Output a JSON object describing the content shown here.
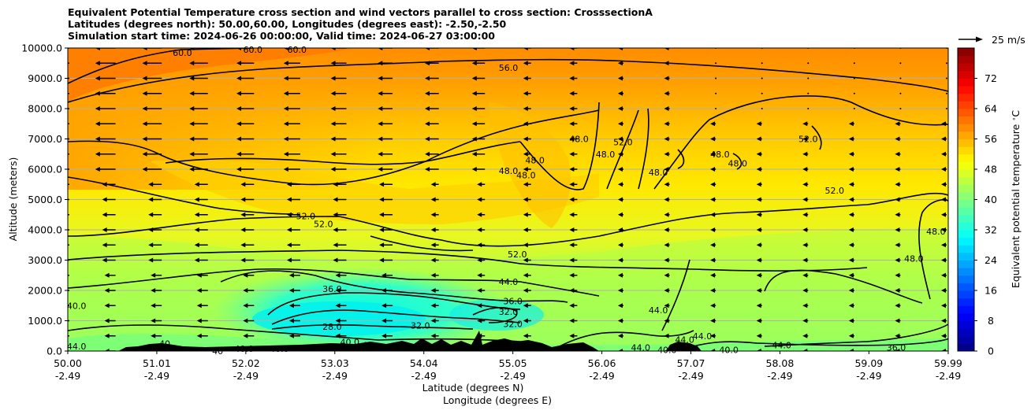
{
  "chart_data": {
    "type": "heatmap",
    "title_lines": [
      "Equivalent Potential Temperature cross section and wind vectors parallel to cross section: CrosssectionA",
      "Latitudes (degrees north): 50.00,60.00, Longitudes (degrees east): -2.50,-2.50",
      "Simulation start time: 2024-06-26 00:00:00, Valid time: 2024-06-27 03:00:00"
    ],
    "xlabel": "Latitude (degrees N)",
    "xlabel2": "Longitude (degrees E)",
    "ylabel": "Altitude (meters)",
    "x_ticks": [
      {
        "lat": "50.00",
        "lon": "-2.49",
        "v": 50.0
      },
      {
        "lat": "51.01",
        "lon": "-2.49",
        "v": 51.01
      },
      {
        "lat": "52.02",
        "lon": "-2.49",
        "v": 52.02
      },
      {
        "lat": "53.03",
        "lon": "-2.49",
        "v": 53.03
      },
      {
        "lat": "54.04",
        "lon": "-2.49",
        "v": 54.04
      },
      {
        "lat": "55.05",
        "lon": "-2.49",
        "v": 55.05
      },
      {
        "lat": "56.06",
        "lon": "-2.49",
        "v": 56.06
      },
      {
        "lat": "57.07",
        "lon": "-2.49",
        "v": 57.07
      },
      {
        "lat": "58.08",
        "lon": "-2.49",
        "v": 58.08
      },
      {
        "lat": "59.09",
        "lon": "-2.49",
        "v": 59.09
      },
      {
        "lat": "59.99",
        "lon": "-2.49",
        "v": 59.99
      }
    ],
    "xlim": [
      50.0,
      59.99
    ],
    "ylim": [
      0,
      10000
    ],
    "y_ticks": [
      {
        "label": "0.0",
        "v": 0
      },
      {
        "label": "1000.0",
        "v": 1000
      },
      {
        "label": "2000.0",
        "v": 2000
      },
      {
        "label": "3000.0",
        "v": 3000
      },
      {
        "label": "4000.0",
        "v": 4000
      },
      {
        "label": "5000.0",
        "v": 5000
      },
      {
        "label": "6000.0",
        "v": 6000
      },
      {
        "label": "7000.0",
        "v": 7000
      },
      {
        "label": "8000.0",
        "v": 8000
      },
      {
        "label": "9000.0",
        "v": 9000
      },
      {
        "label": "10000.0",
        "v": 10000
      }
    ],
    "grid": "horizontal",
    "colorbar": {
      "label": "Equivalent potential temperature $^\\circ$C",
      "range": [
        0,
        80
      ],
      "ticks": [
        {
          "label": "0",
          "v": 0
        },
        {
          "label": "8",
          "v": 8
        },
        {
          "label": "16",
          "v": 16
        },
        {
          "label": "24",
          "v": 24
        },
        {
          "label": "32",
          "v": 32
        },
        {
          "label": "40",
          "v": 40
        },
        {
          "label": "48",
          "v": 48
        },
        {
          "label": "56",
          "v": 56
        },
        {
          "label": "64",
          "v": 64
        },
        {
          "label": "72",
          "v": 72
        }
      ],
      "colormap": "jet",
      "bands": 40
    },
    "quiver_key": {
      "label": "25 m/s",
      "speed": 25
    },
    "contour_levels": [
      28,
      32,
      36,
      40,
      44,
      48,
      52,
      56,
      60
    ],
    "contour_labels": [
      {
        "text": "60.0",
        "lat": 51.3,
        "alt": 9850
      },
      {
        "text": "60.0",
        "lat": 52.1,
        "alt": 9950
      },
      {
        "text": "60.0",
        "lat": 52.6,
        "alt": 9950
      },
      {
        "text": "56.0",
        "lat": 55.0,
        "alt": 9350
      },
      {
        "text": "52.0",
        "lat": 52.7,
        "alt": 4450
      },
      {
        "text": "52.0",
        "lat": 52.9,
        "alt": 4200
      },
      {
        "text": "48.0",
        "lat": 55.8,
        "alt": 7000
      },
      {
        "text": "48.0",
        "lat": 55.3,
        "alt": 6300
      },
      {
        "text": "48.0",
        "lat": 55.0,
        "alt": 5950
      },
      {
        "text": "48.0",
        "lat": 55.2,
        "alt": 5800
      },
      {
        "text": "48.0",
        "lat": 56.1,
        "alt": 6500
      },
      {
        "text": "52.0",
        "lat": 56.3,
        "alt": 6900
      },
      {
        "text": "48.0",
        "lat": 56.7,
        "alt": 5900
      },
      {
        "text": "48.0",
        "lat": 57.4,
        "alt": 6500
      },
      {
        "text": "48.0",
        "lat": 57.6,
        "alt": 6200
      },
      {
        "text": "52.0",
        "lat": 58.4,
        "alt": 7000
      },
      {
        "text": "52.0",
        "lat": 58.7,
        "alt": 5300
      },
      {
        "text": "48.0",
        "lat": 59.85,
        "alt": 3950
      },
      {
        "text": "48.0",
        "lat": 59.6,
        "alt": 3050
      },
      {
        "text": "52.0",
        "lat": 55.1,
        "alt": 3200
      },
      {
        "text": "44.0",
        "lat": 55.0,
        "alt": 2280
      },
      {
        "text": "36.0",
        "lat": 53.0,
        "alt": 2050
      },
      {
        "text": "36.0",
        "lat": 55.05,
        "alt": 1650
      },
      {
        "text": "32.0",
        "lat": 55.0,
        "alt": 1300
      },
      {
        "text": "32.0",
        "lat": 55.05,
        "alt": 900
      },
      {
        "text": "32.0",
        "lat": 54.0,
        "alt": 850
      },
      {
        "text": "28.0",
        "lat": 53.0,
        "alt": 800
      },
      {
        "text": "40.0",
        "lat": 50.1,
        "alt": 1500
      },
      {
        "text": "44.0",
        "lat": 50.1,
        "alt": 150
      },
      {
        "text": "40",
        "lat": 51.1,
        "alt": 250
      },
      {
        "text": "40",
        "lat": 51.7,
        "alt": 0
      },
      {
        "text": "40.0",
        "lat": 52.0,
        "alt": 80
      },
      {
        "text": "40.0",
        "lat": 52.4,
        "alt": 80
      },
      {
        "text": "40.0",
        "lat": 53.2,
        "alt": 300
      },
      {
        "text": "40",
        "lat": 53.4,
        "alt": 200
      },
      {
        "text": "44.0",
        "lat": 56.7,
        "alt": 1350
      },
      {
        "text": "44.0",
        "lat": 56.5,
        "alt": 120
      },
      {
        "text": "40.0",
        "lat": 56.8,
        "alt": 40
      },
      {
        "text": "44.0",
        "lat": 57.0,
        "alt": 380
      },
      {
        "text": "44.0",
        "lat": 57.2,
        "alt": 500
      },
      {
        "text": "40.0",
        "lat": 57.5,
        "alt": 40
      },
      {
        "text": "44.0",
        "lat": 58.1,
        "alt": 200
      },
      {
        "text": "36.0",
        "lat": 59.4,
        "alt": 120
      }
    ]
  }
}
